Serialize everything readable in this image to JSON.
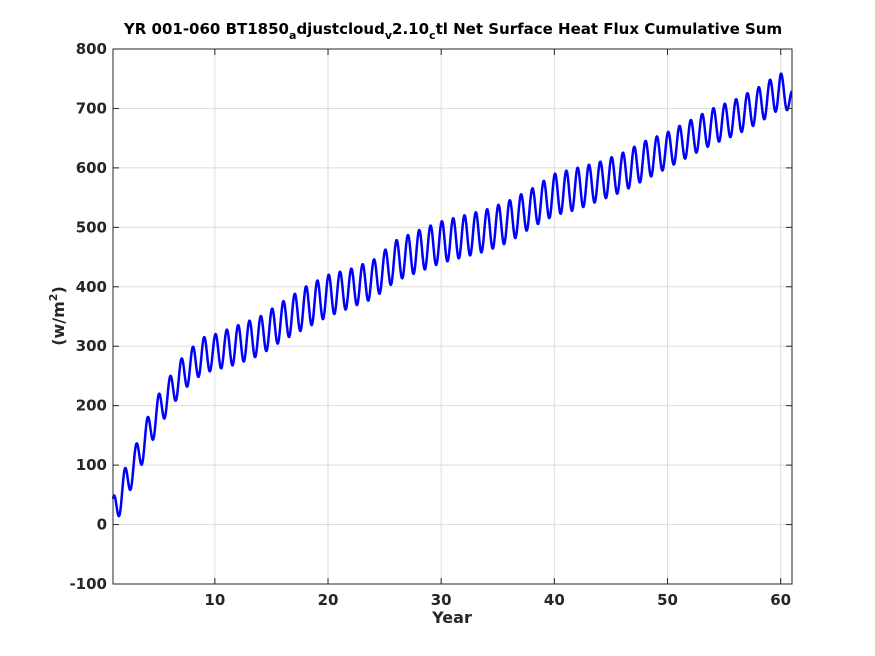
{
  "chart_data": {
    "type": "line",
    "title": {
      "part1": "YR 001-060 BT1850",
      "sub1": "a",
      "part2": "djustcloud",
      "sub2": "v",
      "part3": "2.10",
      "sub3": "c",
      "part4": "tl Net Surface Heat Flux  Cumulative Sum"
    },
    "xlabel": "Year",
    "ylabel": {
      "text": "(w/m",
      "sup": "2",
      "close": ")"
    },
    "xlim": [
      1,
      61
    ],
    "ylim": [
      -100,
      800
    ],
    "xticks": [
      10,
      20,
      30,
      40,
      50,
      60
    ],
    "yticks": [
      -100,
      0,
      100,
      200,
      300,
      400,
      500,
      600,
      700,
      800
    ],
    "grid": true,
    "line_color": "#0000ff",
    "series": [
      {
        "seasonal_cycle": true,
        "x": [
          1,
          2,
          3,
          4,
          5,
          6,
          7,
          8,
          9,
          10,
          12,
          14,
          16,
          18,
          20,
          22,
          24,
          26,
          28,
          30,
          32,
          34,
          36,
          38,
          40,
          42,
          44,
          46,
          48,
          50,
          52,
          54,
          56,
          58,
          60,
          61
        ],
        "annual_max": [
          45,
          92,
          133,
          178,
          218,
          248,
          278,
          298,
          315,
          320,
          335,
          350,
          375,
          400,
          420,
          430,
          445,
          478,
          495,
          510,
          520,
          530,
          545,
          565,
          590,
          600,
          610,
          625,
          645,
          660,
          680,
          700,
          715,
          735,
          760,
          730
        ],
        "annual_min": [
          -10,
          35,
          78,
          120,
          162,
          192,
          222,
          240,
          255,
          260,
          270,
          285,
          310,
          330,
          350,
          365,
          380,
          410,
          425,
          440,
          450,
          460,
          475,
          500,
          520,
          530,
          545,
          560,
          580,
          600,
          620,
          640,
          655,
          675,
          700,
          695
        ]
      }
    ]
  }
}
